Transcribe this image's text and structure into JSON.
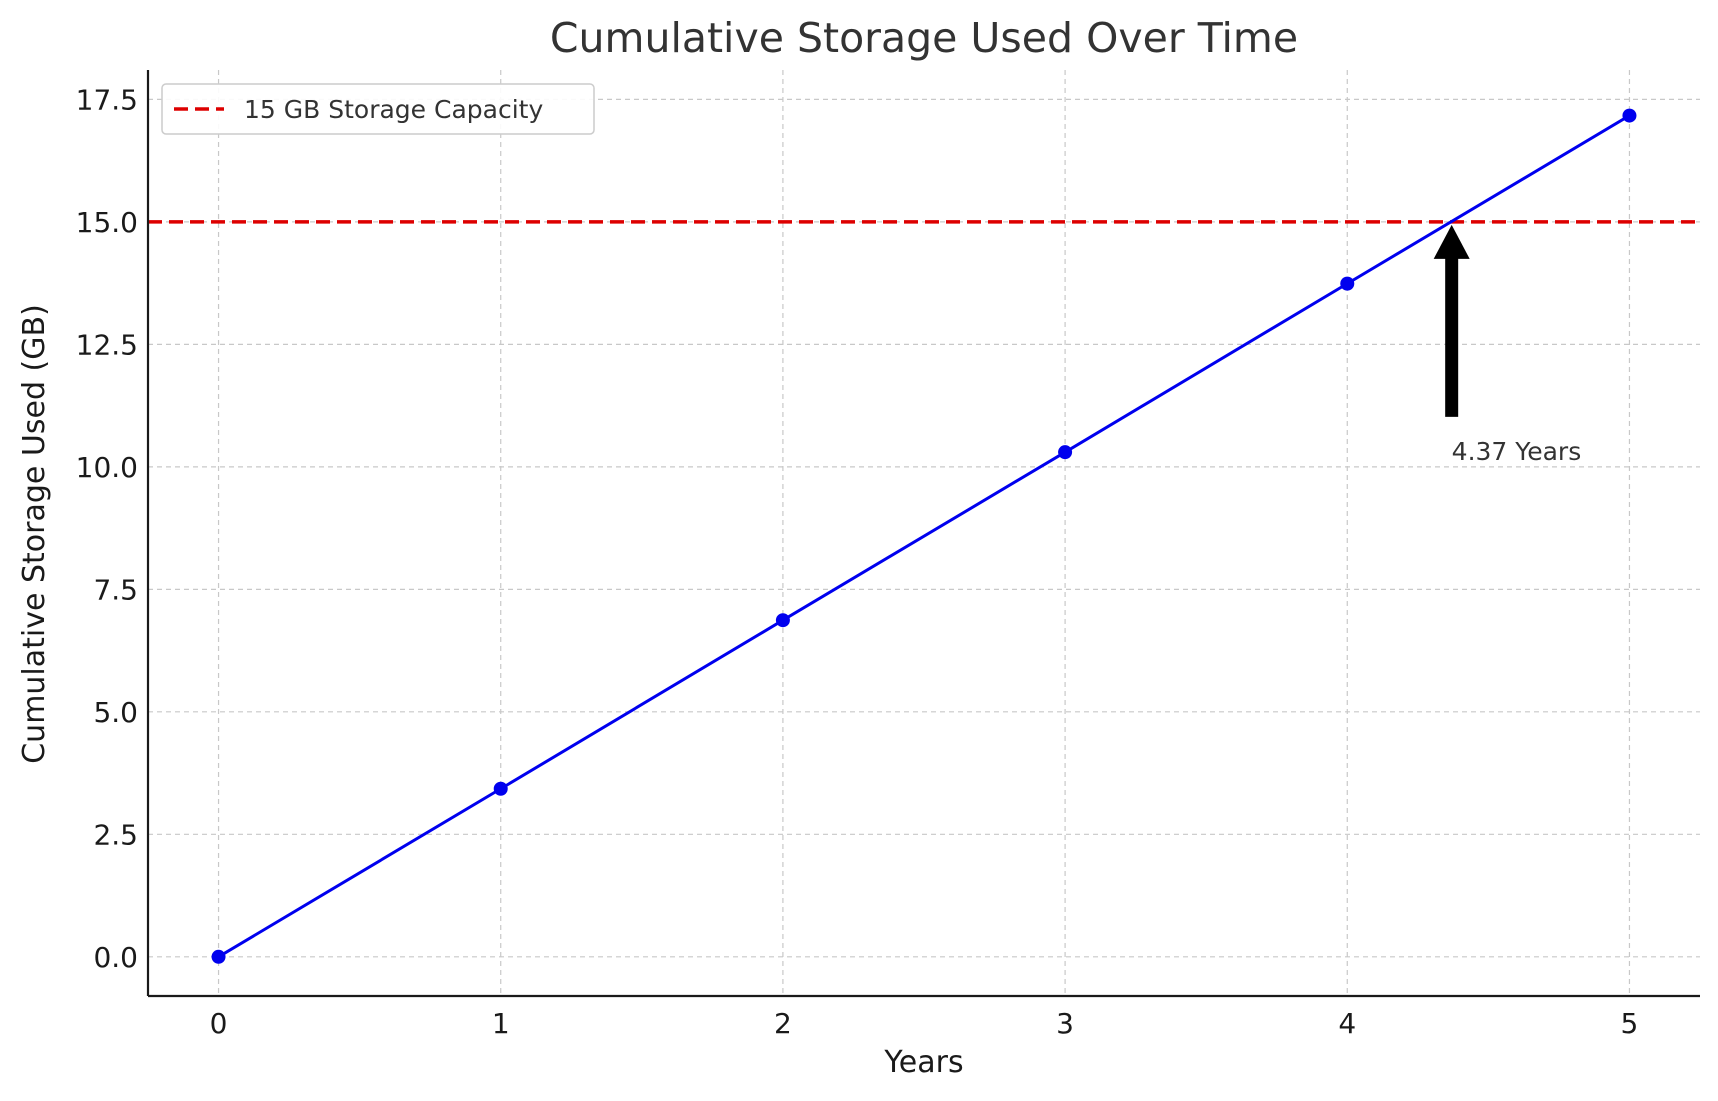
{
  "chart_data": {
    "type": "line",
    "title": "Cumulative Storage Used Over Time",
    "xlabel": "Years",
    "ylabel": "Cumulative Storage Used (GB)",
    "xlim": [
      -0.25,
      5.25
    ],
    "ylim": [
      -0.8,
      18.1
    ],
    "xticks": [
      0,
      1,
      2,
      3,
      4,
      5
    ],
    "xtick_labels": [
      "0",
      "1",
      "2",
      "3",
      "4",
      "5"
    ],
    "yticks": [
      0,
      2.5,
      5,
      7.5,
      10,
      12.5,
      15,
      17.5
    ],
    "ytick_labels": [
      "0.0",
      "2.5",
      "5.0",
      "7.5",
      "10.0",
      "12.5",
      "15.0",
      "17.5"
    ],
    "grid": true,
    "legend_position": "top-left",
    "series": [
      {
        "x": [
          0,
          1,
          2,
          3,
          4,
          5
        ],
        "y": [
          0,
          3.43,
          6.87,
          10.3,
          13.74,
          17.17
        ],
        "color": "#0000ee",
        "marker": "circle"
      }
    ],
    "reference_lines": [
      {
        "name": "15 GB Storage Capacity",
        "orientation": "horizontal",
        "y": 15,
        "color": "#dd0000",
        "style": "dashed"
      }
    ],
    "annotations": [
      {
        "text": "4.37 Years",
        "point": [
          4.37,
          15
        ],
        "text_at": [
          4.37,
          10
        ]
      }
    ]
  }
}
